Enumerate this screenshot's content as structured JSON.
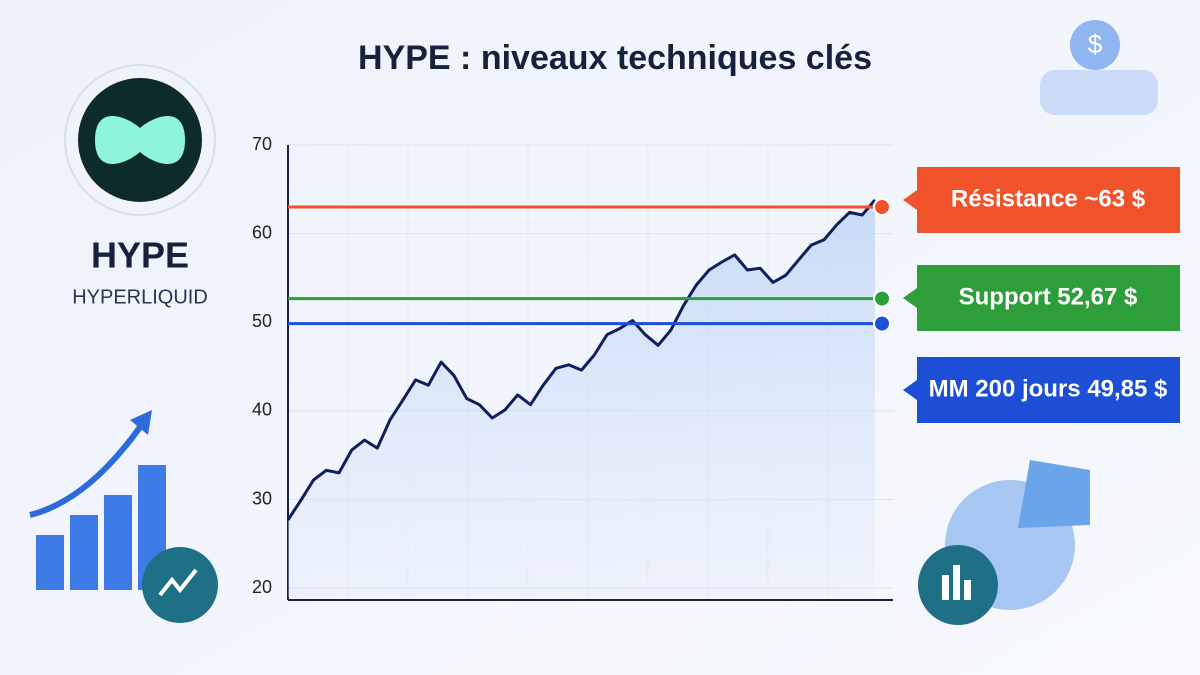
{
  "chart_data": {
    "type": "line",
    "title": "HYPE : niveaux techniques clés",
    "brand": {
      "name": "HYPE",
      "subtitle": "HYPERLIQUID"
    },
    "series": [
      {
        "name": "HYPE",
        "color": "#0f1f5c",
        "values": [
          27.7,
          29.9,
          32.2,
          33.3,
          33,
          35.6,
          36.7,
          35.8,
          39,
          41.2,
          43.5,
          42.9,
          45.5,
          44,
          41.4,
          40.7,
          39.2,
          40.1,
          41.8,
          40.7,
          42.9,
          44.8,
          45.2,
          44.6,
          46.3,
          48.6,
          49.3,
          50.2,
          48.6,
          47.4,
          49.1,
          51.9,
          54.2,
          55.9,
          56.8,
          57.6,
          55.9,
          56.1,
          54.5,
          55.3,
          57,
          58.7,
          59.3,
          61,
          62.4,
          62.1,
          63.8
        ]
      }
    ],
    "levels": [
      {
        "label": "Résistance ~63 $",
        "value": 63,
        "color": "#f0532a"
      },
      {
        "label": "Support 52,67 $",
        "value": 52.67,
        "color": "#2e9e3a"
      },
      {
        "label": "MM 200 jours 49,85 $",
        "value": 49.85,
        "color": "#1d4fd6"
      }
    ],
    "ylim": [
      19,
      70
    ],
    "yticks": [
      20,
      30,
      40,
      50,
      60,
      70
    ],
    "grid": true
  }
}
